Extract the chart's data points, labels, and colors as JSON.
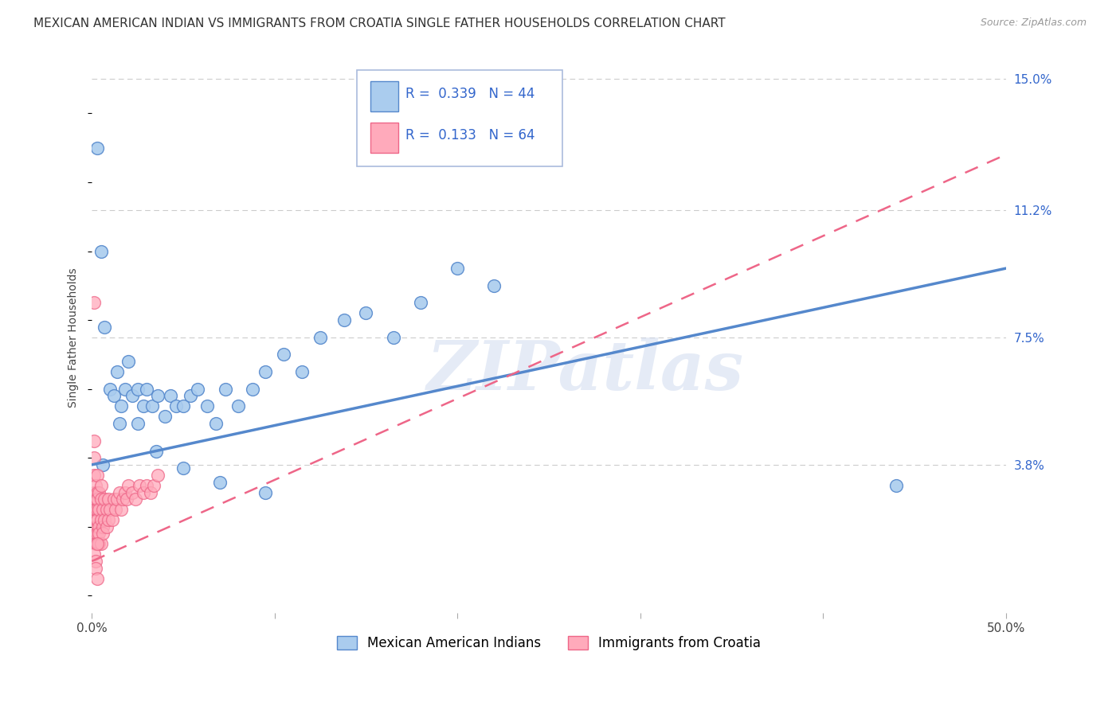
{
  "title": "MEXICAN AMERICAN INDIAN VS IMMIGRANTS FROM CROATIA SINGLE FATHER HOUSEHOLDS CORRELATION CHART",
  "source": "Source: ZipAtlas.com",
  "ylabel": "Single Father Households",
  "xlim": [
    0,
    0.5
  ],
  "ylim": [
    -0.005,
    0.155
  ],
  "xtick_vals": [
    0.0,
    0.1,
    0.2,
    0.3,
    0.4,
    0.5
  ],
  "xtick_labels": [
    "0.0%",
    "",
    "",
    "",
    "",
    "50.0%"
  ],
  "yticks": [
    0.0,
    0.038,
    0.075,
    0.112,
    0.15
  ],
  "ytick_labels": [
    "",
    "3.8%",
    "7.5%",
    "11.2%",
    "15.0%"
  ],
  "grid_color": "#cccccc",
  "watermark": "ZIPatlas",
  "blue_scatter_x": [
    0.003,
    0.005,
    0.007,
    0.01,
    0.012,
    0.014,
    0.016,
    0.018,
    0.02,
    0.022,
    0.025,
    0.028,
    0.03,
    0.033,
    0.036,
    0.04,
    0.043,
    0.046,
    0.05,
    0.054,
    0.058,
    0.063,
    0.068,
    0.073,
    0.08,
    0.088,
    0.095,
    0.105,
    0.115,
    0.125,
    0.138,
    0.15,
    0.165,
    0.18,
    0.2,
    0.22,
    0.015,
    0.025,
    0.035,
    0.05,
    0.07,
    0.095,
    0.006,
    0.44
  ],
  "blue_scatter_y": [
    0.13,
    0.1,
    0.078,
    0.06,
    0.058,
    0.065,
    0.055,
    0.06,
    0.068,
    0.058,
    0.06,
    0.055,
    0.06,
    0.055,
    0.058,
    0.052,
    0.058,
    0.055,
    0.055,
    0.058,
    0.06,
    0.055,
    0.05,
    0.06,
    0.055,
    0.06,
    0.065,
    0.07,
    0.065,
    0.075,
    0.08,
    0.082,
    0.075,
    0.085,
    0.095,
    0.09,
    0.05,
    0.05,
    0.042,
    0.037,
    0.033,
    0.03,
    0.038,
    0.032
  ],
  "pink_scatter_x": [
    0.0005,
    0.001,
    0.001,
    0.001,
    0.001,
    0.002,
    0.002,
    0.002,
    0.002,
    0.002,
    0.002,
    0.003,
    0.003,
    0.003,
    0.003,
    0.003,
    0.003,
    0.003,
    0.003,
    0.004,
    0.004,
    0.004,
    0.004,
    0.004,
    0.005,
    0.005,
    0.005,
    0.005,
    0.006,
    0.006,
    0.006,
    0.007,
    0.007,
    0.008,
    0.008,
    0.009,
    0.009,
    0.01,
    0.011,
    0.012,
    0.013,
    0.014,
    0.015,
    0.016,
    0.017,
    0.018,
    0.019,
    0.02,
    0.022,
    0.024,
    0.026,
    0.028,
    0.03,
    0.032,
    0.034,
    0.036,
    0.001,
    0.001,
    0.001,
    0.002,
    0.002,
    0.003,
    0.003,
    0.001
  ],
  "pink_scatter_y": [
    0.028,
    0.025,
    0.03,
    0.02,
    0.035,
    0.022,
    0.028,
    0.018,
    0.025,
    0.032,
    0.015,
    0.02,
    0.025,
    0.03,
    0.015,
    0.022,
    0.018,
    0.028,
    0.035,
    0.02,
    0.025,
    0.015,
    0.03,
    0.018,
    0.022,
    0.028,
    0.015,
    0.032,
    0.02,
    0.025,
    0.018,
    0.022,
    0.028,
    0.02,
    0.025,
    0.022,
    0.028,
    0.025,
    0.022,
    0.028,
    0.025,
    0.028,
    0.03,
    0.025,
    0.028,
    0.03,
    0.028,
    0.032,
    0.03,
    0.028,
    0.032,
    0.03,
    0.032,
    0.03,
    0.032,
    0.035,
    0.04,
    0.045,
    0.012,
    0.01,
    0.008,
    0.005,
    0.015,
    0.085
  ],
  "blue_line": {
    "x0": 0.0,
    "y0": 0.038,
    "x1": 0.5,
    "y1": 0.095
  },
  "pink_line": {
    "x0": 0.0,
    "y0": 0.01,
    "x1": 0.5,
    "y1": 0.128
  },
  "blue_color": "#5588cc",
  "blue_fill": "#aaccee",
  "pink_color": "#ee6688",
  "pink_fill": "#ffaabb",
  "legend_R1": "0.339",
  "legend_N1": "44",
  "legend_R2": "0.133",
  "legend_N2": "64",
  "legend_label1": "Mexican American Indians",
  "legend_label2": "Immigrants from Croatia",
  "title_fontsize": 11,
  "source_fontsize": 9,
  "label_fontsize": 10,
  "tick_fontsize": 11,
  "legend_fontsize": 12,
  "ytick_color": "#3366cc",
  "background_color": "#ffffff"
}
